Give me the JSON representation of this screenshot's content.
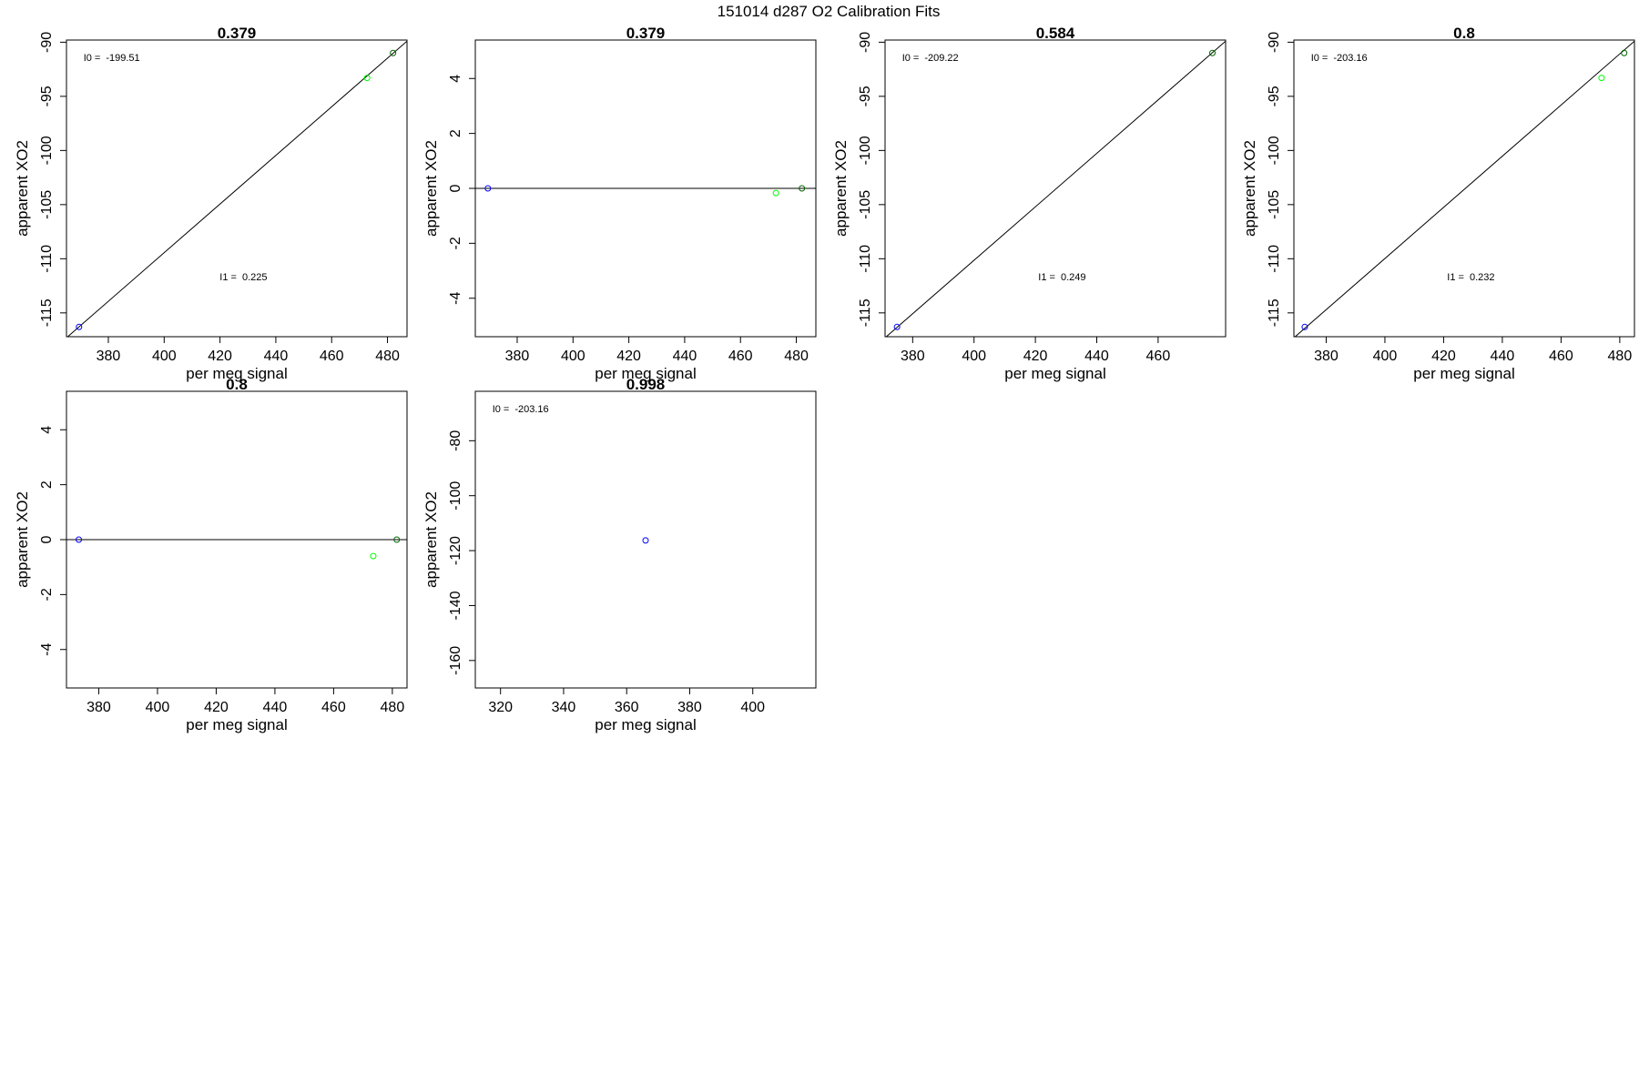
{
  "figure": {
    "title": "151014   d287   O2 Calibration Fits"
  },
  "chart_data": [
    {
      "type": "scatter",
      "title": "0.379",
      "xlabel": "per meg signal",
      "ylabel": "apparent XO2",
      "xlim": [
        365,
        487
      ],
      "ylim": [
        -117.2,
        -89.8
      ],
      "xticks": [
        380,
        400,
        420,
        440,
        460,
        480
      ],
      "yticks": [
        -90,
        -95,
        -100,
        -105,
        -110,
        -115
      ],
      "points": [
        {
          "x": 369.5,
          "y": -116.3,
          "color": "#0000ff"
        },
        {
          "x": 472.7,
          "y": -93.3,
          "color": "#00ff00"
        },
        {
          "x": 482.0,
          "y": -91.0,
          "color": "#006400"
        }
      ],
      "fit_line": [
        [
          365,
          -117.3
        ],
        [
          487,
          -89.9
        ]
      ],
      "annotations": [
        {
          "label": "I0 =",
          "value": "-199.51"
        },
        {
          "label": "I1 =",
          "value": "0.225"
        }
      ]
    },
    {
      "type": "scatter",
      "title": "0.379",
      "xlabel": "per meg signal",
      "ylabel": "apparent XO2",
      "xlim": [
        365,
        487
      ],
      "ylim": [
        -5.4,
        5.4
      ],
      "xticks": [
        380,
        400,
        420,
        440,
        460,
        480
      ],
      "yticks": [
        4,
        2,
        0,
        -2,
        -4
      ],
      "points": [
        {
          "x": 369.5,
          "y": 0.0,
          "color": "#0000ff"
        },
        {
          "x": 472.7,
          "y": -0.17,
          "color": "#00ff00"
        },
        {
          "x": 482.0,
          "y": 0.0,
          "color": "#006400"
        }
      ],
      "fit_line": [
        [
          365,
          0
        ],
        [
          487,
          0
        ]
      ],
      "annotations": []
    },
    {
      "type": "scatter",
      "title": "0.584",
      "xlabel": "per meg signal",
      "ylabel": "apparent XO2",
      "xlim": [
        371,
        482
      ],
      "ylim": [
        -117.2,
        -89.8
      ],
      "xticks": [
        380,
        400,
        420,
        440,
        460
      ],
      "yticks": [
        -90,
        -95,
        -100,
        -105,
        -110,
        -115
      ],
      "points": [
        {
          "x": 374.9,
          "y": -116.3,
          "color": "#0000ff"
        },
        {
          "x": 477.7,
          "y": -91.0,
          "color": "#006400"
        }
      ],
      "fit_line": [
        [
          371,
          -117.3
        ],
        [
          482,
          -89.9
        ]
      ],
      "annotations": [
        {
          "label": "I0 =",
          "value": "-209.22"
        },
        {
          "label": "I1 =",
          "value": "0.249"
        }
      ]
    },
    {
      "type": "scatter",
      "title": "0.8",
      "xlabel": "per meg signal",
      "ylabel": "apparent XO2",
      "xlim": [
        369,
        485
      ],
      "ylim": [
        -117.2,
        -89.8
      ],
      "xticks": [
        380,
        400,
        420,
        440,
        460,
        480
      ],
      "yticks": [
        -90,
        -95,
        -100,
        -105,
        -110,
        -115
      ],
      "points": [
        {
          "x": 372.7,
          "y": -116.3,
          "color": "#0000ff"
        },
        {
          "x": 473.8,
          "y": -93.3,
          "color": "#00ff00"
        },
        {
          "x": 481.5,
          "y": -91.0,
          "color": "#006400"
        }
      ],
      "fit_line": [
        [
          369,
          -117.3
        ],
        [
          485,
          -89.9
        ]
      ],
      "annotations": [
        {
          "label": "I0 =",
          "value": "-203.16"
        },
        {
          "label": "I1 =",
          "value": "0.232"
        }
      ]
    },
    {
      "type": "scatter",
      "title": "0.8",
      "xlabel": "per meg signal",
      "ylabel": "apparent XO2",
      "xlim": [
        369,
        485
      ],
      "ylim": [
        -5.4,
        5.4
      ],
      "xticks": [
        380,
        400,
        420,
        440,
        460,
        480
      ],
      "yticks": [
        4,
        2,
        0,
        -2,
        -4
      ],
      "points": [
        {
          "x": 373.2,
          "y": 0.0,
          "color": "#0000ff"
        },
        {
          "x": 473.5,
          "y": -0.6,
          "color": "#00ff00"
        },
        {
          "x": 481.5,
          "y": 0.0,
          "color": "#006400"
        }
      ],
      "fit_line": [
        [
          369,
          0
        ],
        [
          485,
          0
        ]
      ],
      "annotations": []
    },
    {
      "type": "scatter",
      "title": "0.998",
      "xlabel": "per meg signal",
      "ylabel": "apparent XO2",
      "xlim": [
        312,
        420
      ],
      "ylim": [
        -170,
        -62
      ],
      "xticks": [
        320,
        340,
        360,
        380,
        400
      ],
      "yticks": [
        -80,
        -100,
        -120,
        -140,
        -160
      ],
      "points": [
        {
          "x": 366,
          "y": -116.3,
          "color": "#0000ff"
        }
      ],
      "fit_line": null,
      "annotations": [
        {
          "label": "I0 =",
          "value": "-203.16"
        }
      ]
    }
  ]
}
